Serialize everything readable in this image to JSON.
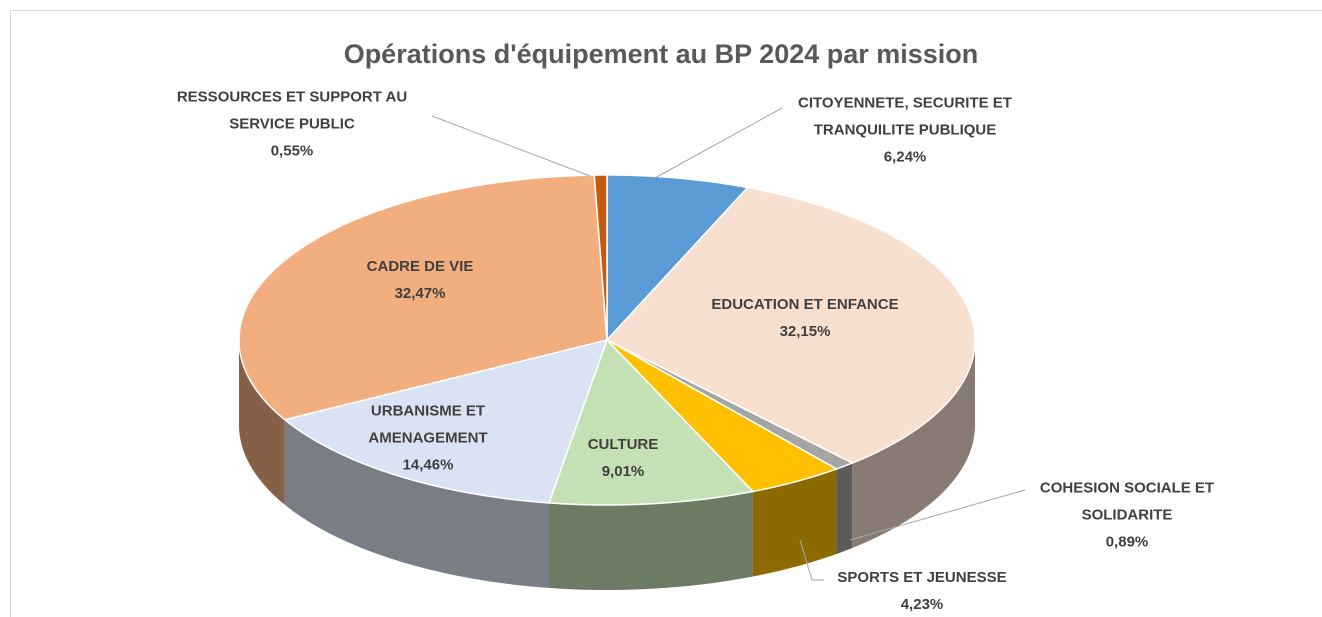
{
  "chart_data": {
    "type": "pie3d",
    "title": "Opérations d'équipement au BP 2024 par mission",
    "categories": [
      "CITOYENNETE, SECURITE ET TRANQUILITE PUBLIQUE",
      "EDUCATION ET ENFANCE",
      "COHESION SOCIALE ET SOLIDARITE",
      "SPORTS ET JEUNESSE",
      "CULTURE",
      "URBANISME ET AMENAGEMENT",
      "CADRE DE VIE",
      "RESSOURCES ET SUPPORT AU SERVICE PUBLIC"
    ],
    "values": [
      6.24,
      32.15,
      0.89,
      4.23,
      9.01,
      14.46,
      32.47,
      0.55
    ],
    "value_labels": [
      "6,24%",
      "32,15%",
      "0,89%",
      "4,23%",
      "9,01%",
      "14,46%",
      "32,47%",
      "0,55%"
    ],
    "colors": [
      "#5b9bd5",
      "#f8e0d1",
      "#a5a5a5",
      "#ffc000",
      "#c5e0b4",
      "#dae3f3",
      "#f2ae7f",
      "#c55a11"
    ]
  }
}
